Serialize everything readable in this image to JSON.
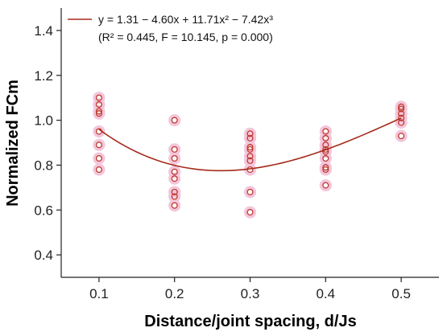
{
  "colors": {
    "fit_line": "#a52a1a",
    "marker_stroke": "#c0392b",
    "marker_halo": "#f3c6dc",
    "axis": "#222222"
  },
  "chart_data": {
    "type": "scatter",
    "xlabel": "Distance/joint spacing, d/Js",
    "ylabel": "Normalized FCm",
    "xlim": [
      0.05,
      0.55
    ],
    "ylim": [
      0.3,
      1.5
    ],
    "xticks": [
      0.1,
      0.2,
      0.3,
      0.4,
      0.5
    ],
    "yticks": [
      0.4,
      0.6,
      0.8,
      1.0,
      1.2,
      1.4
    ],
    "xtick_labels": [
      "0.1",
      "0.2",
      "0.3",
      "0.4",
      "0.5"
    ],
    "ytick_labels": [
      "0.4",
      "0.6",
      "0.8",
      "1.0",
      "1.2",
      "1.4"
    ],
    "grid": false,
    "legend": {
      "position": "top-left",
      "equation": "y = 1.31 − 4.60x + 11.71x² − 7.42x³",
      "stats": "(R² = 0.445, F = 10.145, p = 0.000)"
    },
    "fit": {
      "type": "cubic",
      "coefficients": [
        1.31,
        -4.6,
        11.71,
        -7.42
      ],
      "x_range": [
        0.1,
        0.5
      ]
    },
    "points": [
      {
        "x": 0.1,
        "y": 1.1
      },
      {
        "x": 0.1,
        "y": 1.07
      },
      {
        "x": 0.1,
        "y": 1.04
      },
      {
        "x": 0.1,
        "y": 1.03
      },
      {
        "x": 0.1,
        "y": 0.95
      },
      {
        "x": 0.1,
        "y": 0.89
      },
      {
        "x": 0.1,
        "y": 0.83
      },
      {
        "x": 0.1,
        "y": 0.78
      },
      {
        "x": 0.2,
        "y": 1.0
      },
      {
        "x": 0.2,
        "y": 0.87
      },
      {
        "x": 0.2,
        "y": 0.83
      },
      {
        "x": 0.2,
        "y": 0.77
      },
      {
        "x": 0.2,
        "y": 0.74
      },
      {
        "x": 0.2,
        "y": 0.68
      },
      {
        "x": 0.2,
        "y": 0.66
      },
      {
        "x": 0.2,
        "y": 0.62
      },
      {
        "x": 0.3,
        "y": 0.94
      },
      {
        "x": 0.3,
        "y": 0.92
      },
      {
        "x": 0.3,
        "y": 0.88
      },
      {
        "x": 0.3,
        "y": 0.87
      },
      {
        "x": 0.3,
        "y": 0.84
      },
      {
        "x": 0.3,
        "y": 0.82
      },
      {
        "x": 0.3,
        "y": 0.78
      },
      {
        "x": 0.3,
        "y": 0.68
      },
      {
        "x": 0.3,
        "y": 0.59
      },
      {
        "x": 0.4,
        "y": 0.95
      },
      {
        "x": 0.4,
        "y": 0.92
      },
      {
        "x": 0.4,
        "y": 0.89
      },
      {
        "x": 0.4,
        "y": 0.87
      },
      {
        "x": 0.4,
        "y": 0.86
      },
      {
        "x": 0.4,
        "y": 0.83
      },
      {
        "x": 0.4,
        "y": 0.79
      },
      {
        "x": 0.4,
        "y": 0.78
      },
      {
        "x": 0.4,
        "y": 0.71
      },
      {
        "x": 0.5,
        "y": 1.06
      },
      {
        "x": 0.5,
        "y": 1.05
      },
      {
        "x": 0.5,
        "y": 1.03
      },
      {
        "x": 0.5,
        "y": 1.01
      },
      {
        "x": 0.5,
        "y": 0.99
      },
      {
        "x": 0.5,
        "y": 0.93
      }
    ]
  }
}
